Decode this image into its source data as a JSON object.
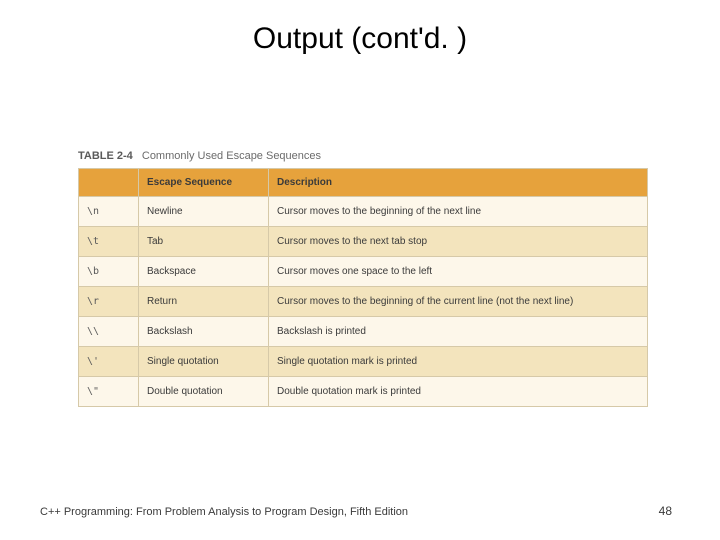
{
  "title": "Output (cont'd. )",
  "table": {
    "caption_label": "TABLE 2-4",
    "caption_text": "Commonly Used Escape Sequences",
    "header_row_bg": "#e6a23c",
    "row_odd_bg": "#fdf7ea",
    "row_even_bg": "#f3e4bd",
    "border_color": "#d6c9a8",
    "columns": [
      "",
      "Escape Sequence",
      "Description"
    ],
    "rows": [
      [
        "\\n",
        "Newline",
        "Cursor moves to the beginning of the next line"
      ],
      [
        "\\t",
        "Tab",
        "Cursor moves to the next tab stop"
      ],
      [
        "\\b",
        "Backspace",
        "Cursor moves one space to the left"
      ],
      [
        "\\r",
        "Return",
        "Cursor moves to the beginning of the current line (not the next line)"
      ],
      [
        "\\\\",
        "Backslash",
        "Backslash is printed"
      ],
      [
        "\\'",
        "Single quotation",
        "Single quotation mark is printed"
      ],
      [
        "\\\"",
        "Double quotation",
        "Double quotation mark is printed"
      ]
    ]
  },
  "footer": "C++ Programming: From Problem Analysis to Program Design, Fifth Edition",
  "page_number": "48"
}
